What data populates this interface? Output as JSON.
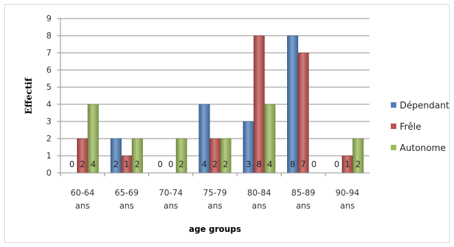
{
  "chart_data": {
    "type": "bar",
    "categories": [
      [
        "60-64",
        "ans"
      ],
      [
        "65-69",
        "ans"
      ],
      [
        "70-74",
        "ans"
      ],
      [
        "75-79",
        "ans"
      ],
      [
        "80-84",
        "ans"
      ],
      [
        "85-89",
        "ans"
      ],
      [
        "90-94",
        "ans"
      ]
    ],
    "series": [
      {
        "name": "Dépendant",
        "values": [
          0,
          2,
          0,
          4,
          3,
          8,
          0
        ],
        "color": "#4F81BD"
      },
      {
        "name": "Frêle",
        "values": [
          2,
          1,
          0,
          2,
          8,
          7,
          1
        ],
        "color": "#C0504D"
      },
      {
        "name": "Autonome",
        "values": [
          4,
          2,
          2,
          2,
          4,
          0,
          2
        ],
        "color": "#9BBB59"
      }
    ],
    "ylabel": "Effectif",
    "xlabel": "age groups",
    "ylim": [
      0,
      9
    ],
    "yticks": [
      0,
      1,
      2,
      3,
      4,
      5,
      6,
      7,
      8,
      9
    ],
    "grid": true,
    "legend_position": "right"
  }
}
